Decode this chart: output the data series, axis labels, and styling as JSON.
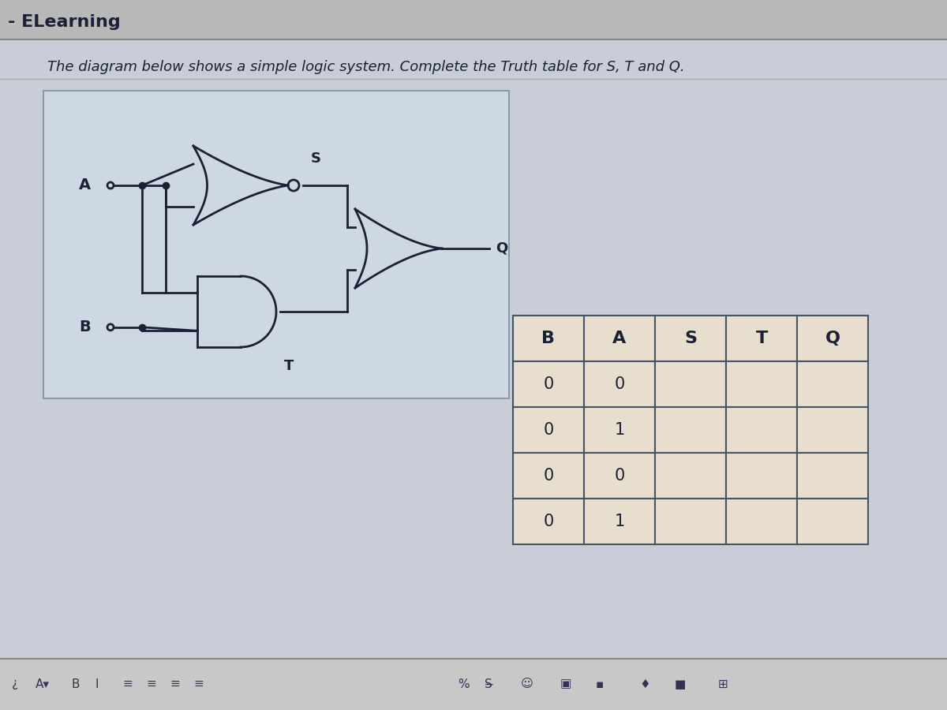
{
  "title": "- ELearning",
  "subtitle": "The diagram below shows a simple logic system. Complete the Truth table for S, T and Q.",
  "bg_top": "#c8c8c8",
  "bg_main": "#c8cdd8",
  "bg_diagram": "#cdd8e3",
  "circuit_color": "#1a2035",
  "table_headers": [
    "B",
    "A",
    "S",
    "T",
    "Q"
  ],
  "table_rows": [
    [
      "0",
      "0",
      "",
      "",
      ""
    ],
    [
      "0",
      "1",
      "",
      "",
      ""
    ],
    [
      "0",
      "0",
      "",
      "",
      ""
    ],
    [
      "0",
      "1",
      "",
      "",
      ""
    ]
  ],
  "table_bg": "#e8dece",
  "table_border": "#445566",
  "toolbar_bg": "#c0c0c0"
}
